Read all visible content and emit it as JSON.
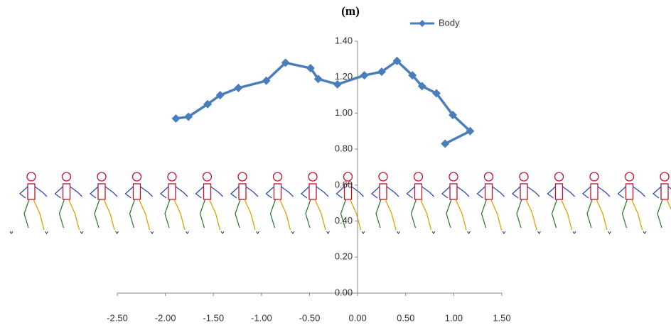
{
  "chart_data": {
    "type": "line",
    "title": "(m)",
    "x": [
      -1.89,
      -1.76,
      -1.56,
      -1.43,
      -1.24,
      -0.95,
      -0.75,
      -0.49,
      -0.41,
      -0.21,
      0.07,
      0.25,
      0.41,
      0.57,
      0.67,
      0.82,
      0.99,
      1.17,
      0.91
    ],
    "series": [
      {
        "name": "Body",
        "color": "#4a7ebb",
        "values": [
          0.97,
          0.98,
          1.05,
          1.1,
          1.14,
          1.18,
          1.28,
          1.25,
          1.19,
          1.16,
          1.21,
          1.23,
          1.29,
          1.21,
          1.15,
          1.11,
          0.99,
          0.9,
          0.83
        ]
      }
    ],
    "xlim": [
      -2.5,
      1.5
    ],
    "xticks": [
      {
        "value": -2.5,
        "label": "-2.50"
      },
      {
        "value": -2,
        "label": "-2.00"
      },
      {
        "value": -1.5,
        "label": "-1.50"
      },
      {
        "value": -1,
        "label": "-1.00"
      },
      {
        "value": -0.5,
        "label": "-0.50"
      },
      {
        "value": 0,
        "label": "0.00"
      },
      {
        "value": 0.5,
        "label": "0.50"
      },
      {
        "value": 1,
        "label": "1.00"
      },
      {
        "value": 1.5,
        "label": "1.50"
      }
    ],
    "ylim": [
      0,
      1.4
    ],
    "yticks": [
      {
        "value": 0,
        "label": "0.00"
      },
      {
        "value": 0.2,
        "label": "0.20"
      },
      {
        "value": 0.4,
        "label": "0.40"
      },
      {
        "value": 0.6,
        "label": "0.60"
      },
      {
        "value": 0.8,
        "label": "0.80"
      },
      {
        "value": 1,
        "label": "1.00"
      },
      {
        "value": 1.2,
        "label": "1.20"
      },
      {
        "value": 1.4,
        "label": "1.40"
      }
    ],
    "legend": "top-right"
  }
}
